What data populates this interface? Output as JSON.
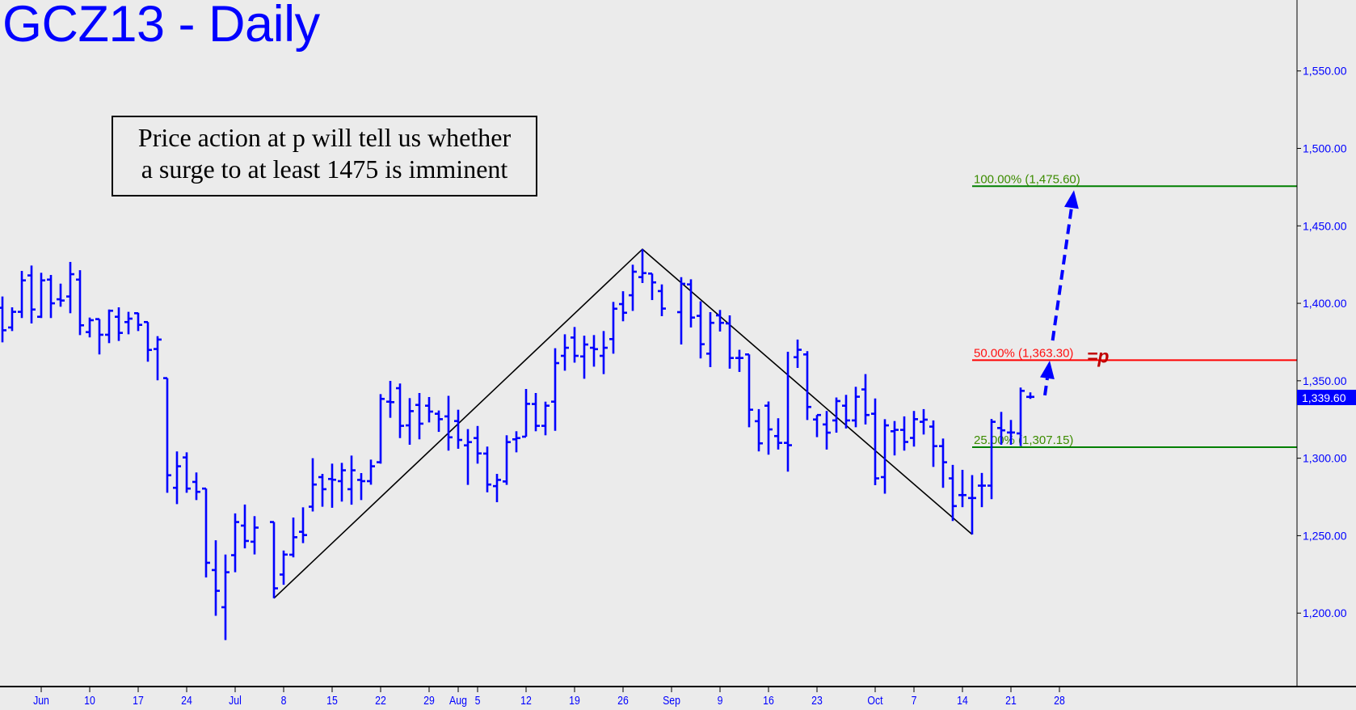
{
  "title": "GCZ13 - Daily",
  "note": {
    "line1": "Price action at p will tell us whether",
    "line2": "a surge to at least 1475 is imminent"
  },
  "colors": {
    "bars": "#0000ff",
    "axis_text": "#0000ff",
    "background": "#ebebeb",
    "fib_green": "#008000",
    "fib_red": "#ff0000",
    "p_marker": "#c00000"
  },
  "chart_data": {
    "type": "ohlc",
    "title": "GCZ13 - Daily",
    "xlabel": "",
    "ylabel": "",
    "ylim": [
      1152.6,
      1595.8
    ],
    "y_ticks": [
      {
        "value": 1200,
        "label": "1,200.00"
      },
      {
        "value": 1250,
        "label": "1,250.00"
      },
      {
        "value": 1300,
        "label": "1,300.00"
      },
      {
        "value": 1350,
        "label": "1,350.00"
      },
      {
        "value": 1400,
        "label": "1,400.00"
      },
      {
        "value": 1450,
        "label": "1,450.00"
      },
      {
        "value": 1500,
        "label": "1,500.00"
      },
      {
        "value": 1550,
        "label": "1,550.00"
      }
    ],
    "x_ticks": [
      {
        "date": "2013-06-03",
        "label": "Jun"
      },
      {
        "date": "2013-06-10",
        "label": "10"
      },
      {
        "date": "2013-06-17",
        "label": "17"
      },
      {
        "date": "2013-06-24",
        "label": "24"
      },
      {
        "date": "2013-07-01",
        "label": "Jul"
      },
      {
        "date": "2013-07-08",
        "label": "8"
      },
      {
        "date": "2013-07-15",
        "label": "15"
      },
      {
        "date": "2013-07-22",
        "label": "22"
      },
      {
        "date": "2013-07-29",
        "label": "29"
      },
      {
        "date": "2013-08-01",
        "label": "Aug"
      },
      {
        "date": "2013-08-05",
        "label": "5"
      },
      {
        "date": "2013-08-12",
        "label": "12"
      },
      {
        "date": "2013-08-19",
        "label": "19"
      },
      {
        "date": "2013-08-26",
        "label": "26"
      },
      {
        "date": "2013-09-02",
        "label": "Sep"
      },
      {
        "date": "2013-09-09",
        "label": "9"
      },
      {
        "date": "2013-09-16",
        "label": "16"
      },
      {
        "date": "2013-09-23",
        "label": "23"
      },
      {
        "date": "2013-10-01",
        "label": "Oct"
      },
      {
        "date": "2013-10-07",
        "label": "7"
      },
      {
        "date": "2013-10-14",
        "label": "14"
      },
      {
        "date": "2013-10-21",
        "label": "21"
      },
      {
        "date": "2013-10-28",
        "label": "28"
      }
    ],
    "last_price": {
      "value": 1339.6,
      "label": "1,339.60"
    },
    "bar_fields": [
      "date",
      "open",
      "high",
      "low",
      "close"
    ],
    "bars": [
      [
        "2013-05-28",
        1397.1,
        1404.4,
        1374.8,
        1382.6
      ],
      [
        "2013-05-29",
        1384.4,
        1397.4,
        1382.1,
        1394.5
      ],
      [
        "2013-05-30",
        1394.5,
        1420.9,
        1390.5,
        1414.8
      ],
      [
        "2013-05-31",
        1418,
        1424.4,
        1387,
        1396
      ],
      [
        "2013-06-03",
        1391.3,
        1419.7,
        1390.5,
        1414.8
      ],
      [
        "2013-06-04",
        1415.3,
        1418.3,
        1390.5,
        1400
      ],
      [
        "2013-06-05",
        1402.6,
        1412.7,
        1397.8,
        1401.8
      ],
      [
        "2013-06-06",
        1404.4,
        1426.7,
        1393.6,
        1418.8
      ],
      [
        "2013-06-07",
        1415.3,
        1421.4,
        1379.5,
        1385.8
      ],
      [
        "2013-06-10",
        1381.4,
        1390.8,
        1378,
        1389.1
      ],
      [
        "2013-06-11",
        1389.8,
        1389.8,
        1367,
        1379.7
      ],
      [
        "2013-06-12",
        1379.7,
        1396,
        1374.3,
        1395.2
      ],
      [
        "2013-06-13",
        1391.3,
        1397.4,
        1375.7,
        1380.9
      ],
      [
        "2013-06-14",
        1387.9,
        1394.5,
        1380,
        1390.1
      ],
      [
        "2013-06-17",
        1393.6,
        1393.9,
        1382.1,
        1386.1
      ],
      [
        "2013-06-18",
        1387.9,
        1387.9,
        1362.3,
        1369.9
      ],
      [
        "2013-06-19",
        1370.5,
        1378.8,
        1350.3,
        1376.6
      ],
      [
        "2013-06-20",
        1351.7,
        1351.7,
        1277.7,
        1289
      ],
      [
        "2013-06-21",
        1280.9,
        1304.4,
        1270.4,
        1294.8
      ],
      [
        "2013-06-24",
        1300.5,
        1303.8,
        1277.7,
        1280.4
      ],
      [
        "2013-06-25",
        1284.7,
        1290.8,
        1273,
        1278.3
      ],
      [
        "2013-06-26",
        1280.4,
        1280.4,
        1223,
        1232.5
      ],
      [
        "2013-06-27",
        1227.8,
        1247,
        1198.3,
        1214.4
      ],
      [
        "2013-06-28",
        1203.8,
        1237.8,
        1182.6,
        1226.4
      ],
      [
        "2013-07-01",
        1237.4,
        1264.4,
        1226.4,
        1258.8
      ],
      [
        "2013-07-02",
        1256.5,
        1270.1,
        1241.8,
        1246.6
      ],
      [
        "2013-07-03",
        1246.1,
        1262.6,
        1237.9,
        1255.2
      ],
      [
        "2013-07-05",
        1258.8,
        1258.8,
        1209.6,
        1216
      ],
      [
        "2013-07-08",
        1224.9,
        1240.4,
        1218.3,
        1237.8
      ],
      [
        "2013-07-09",
        1237.7,
        1261.7,
        1236,
        1249
      ],
      [
        "2013-07-10",
        1252.5,
        1268.3,
        1245.2,
        1250.4
      ],
      [
        "2013-07-11",
        1268.7,
        1300,
        1265.6,
        1283
      ],
      [
        "2013-07-12",
        1287.8,
        1289.9,
        1268.7,
        1280
      ],
      [
        "2013-07-15",
        1286.6,
        1296.5,
        1268,
        1286.1
      ],
      [
        "2013-07-16",
        1285.2,
        1297,
        1272,
        1292.2
      ],
      [
        "2013-07-17",
        1280,
        1301.7,
        1270,
        1292.2
      ],
      [
        "2013-07-18",
        1286,
        1290.4,
        1273,
        1285.2
      ],
      [
        "2013-07-19",
        1285.2,
        1299.1,
        1282.9,
        1294.8
      ],
      [
        "2013-07-22",
        1297.4,
        1341.4,
        1296.5,
        1338.3
      ],
      [
        "2013-07-23",
        1336.5,
        1349.9,
        1326.1,
        1336.2
      ],
      [
        "2013-07-24",
        1345.2,
        1348.2,
        1313,
        1320.9
      ],
      [
        "2013-07-25",
        1321.2,
        1338.8,
        1308.7,
        1330.4
      ],
      [
        "2013-07-26",
        1334.4,
        1342.1,
        1312.2,
        1322.3
      ],
      [
        "2013-07-29",
        1333.9,
        1339.5,
        1323.1,
        1330.1
      ],
      [
        "2013-07-30",
        1328.7,
        1330.8,
        1317,
        1325.2
      ],
      [
        "2013-07-31",
        1327,
        1340.3,
        1304.9,
        1313.5
      ],
      [
        "2013-08-01",
        1324,
        1331.3,
        1306.1,
        1311.8
      ],
      [
        "2013-08-02",
        1308.3,
        1318.8,
        1282.8,
        1310.4
      ],
      [
        "2013-08-05",
        1313,
        1320.8,
        1296.5,
        1303.1
      ],
      [
        "2013-08-06",
        1303,
        1307.5,
        1278,
        1283
      ],
      [
        "2013-08-07",
        1282,
        1289.9,
        1271.6,
        1286
      ],
      [
        "2013-08-08",
        1285,
        1314.8,
        1282.8,
        1310.4
      ],
      [
        "2013-08-09",
        1312.2,
        1317.4,
        1303.8,
        1313
      ],
      [
        "2013-08-12",
        1313.9,
        1344.7,
        1313.9,
        1335.1
      ],
      [
        "2013-08-13",
        1335,
        1342.1,
        1317.4,
        1320.9
      ],
      [
        "2013-08-14",
        1320.9,
        1336.5,
        1314.8,
        1333.9
      ],
      [
        "2013-08-15",
        1336.5,
        1371,
        1317.7,
        1361.4
      ],
      [
        "2013-08-16",
        1366.1,
        1380,
        1356.5,
        1371.3
      ],
      [
        "2013-08-19",
        1377.9,
        1384.7,
        1361.7,
        1366.1
      ],
      [
        "2013-08-20",
        1365.7,
        1379.1,
        1351.3,
        1373.4
      ],
      [
        "2013-08-21",
        1371.3,
        1379.5,
        1359.1,
        1370.4
      ],
      [
        "2013-08-22",
        1366.1,
        1382.1,
        1354.3,
        1371.3
      ],
      [
        "2013-08-23",
        1376.9,
        1400.9,
        1367.5,
        1396.5
      ],
      [
        "2013-08-26",
        1399.5,
        1407.8,
        1388.4,
        1393.9
      ],
      [
        "2013-08-27",
        1405.2,
        1424.9,
        1395.1,
        1420.4
      ],
      [
        "2013-08-28",
        1416.9,
        1434.9,
        1413.1,
        1419.5
      ],
      [
        "2013-08-29",
        1419.2,
        1419.2,
        1402.1,
        1413.5
      ],
      [
        "2013-08-30",
        1407.9,
        1412.2,
        1391.7,
        1396.6
      ],
      [
        "2013-09-03",
        1394.3,
        1416.9,
        1373.4,
        1412.6
      ],
      [
        "2013-09-04",
        1412.2,
        1415.5,
        1384.4,
        1390.8
      ],
      [
        "2013-09-05",
        1391.9,
        1401.3,
        1364.4,
        1373.6
      ],
      [
        "2013-09-06",
        1367.5,
        1394.3,
        1358.8,
        1387.4
      ],
      [
        "2013-09-09",
        1392.2,
        1395.7,
        1381.8,
        1387.4
      ],
      [
        "2013-09-10",
        1387,
        1392.2,
        1357.8,
        1364.7
      ],
      [
        "2013-09-11",
        1364.7,
        1370,
        1355.7,
        1364.7
      ],
      [
        "2013-09-12",
        1367,
        1367,
        1320,
        1331.3
      ],
      [
        "2013-09-13",
        1323.9,
        1331.7,
        1304.4,
        1309.6
      ],
      [
        "2013-09-16",
        1333.9,
        1336.6,
        1302.3,
        1318.6
      ],
      [
        "2013-09-17",
        1314.3,
        1325.8,
        1305.6,
        1309.9
      ],
      [
        "2013-09-18",
        1309.9,
        1368.7,
        1291.3,
        1308.4
      ],
      [
        "2013-09-19",
        1365.2,
        1376.6,
        1358.3,
        1370
      ],
      [
        "2013-09-20",
        1367,
        1369.1,
        1324.7,
        1333.1
      ],
      [
        "2013-09-23",
        1325,
        1327.9,
        1313.6,
        1327.9
      ],
      [
        "2013-09-24",
        1321.8,
        1330.5,
        1305.6,
        1316.5
      ],
      [
        "2013-09-25",
        1324.4,
        1339.2,
        1316.5,
        1336.9
      ],
      [
        "2013-09-26",
        1333.9,
        1340.9,
        1319.2,
        1324.4
      ],
      [
        "2013-09-27",
        1324.4,
        1346.1,
        1320,
        1339.7
      ],
      [
        "2013-09-30",
        1344.4,
        1354.3,
        1321.8,
        1327.9
      ],
      [
        "2013-10-01",
        1328.7,
        1338.6,
        1282.6,
        1287
      ],
      [
        "2013-10-02",
        1287.8,
        1325.2,
        1277.1,
        1321.2
      ],
      [
        "2013-10-03",
        1317.4,
        1324,
        1301.8,
        1318.3
      ],
      [
        "2013-10-04",
        1318.3,
        1327,
        1304.9,
        1310.5
      ],
      [
        "2013-10-07",
        1313.1,
        1330.5,
        1307.5,
        1325.2
      ],
      [
        "2013-10-08",
        1323.5,
        1331.7,
        1315.3,
        1324.9
      ],
      [
        "2013-10-09",
        1320.4,
        1324.4,
        1294.4,
        1307.8
      ],
      [
        "2013-10-10",
        1307.8,
        1312.7,
        1280.9,
        1297.4
      ],
      [
        "2013-10-11",
        1287,
        1295.7,
        1259.5,
        1269.1
      ],
      [
        "2013-10-14",
        1276.2,
        1292.5,
        1268.4,
        1276.2
      ],
      [
        "2013-10-15",
        1274.3,
        1289.1,
        1250.8,
        1274.3
      ],
      [
        "2013-10-16",
        1282.3,
        1290.5,
        1268.4,
        1282.3
      ],
      [
        "2013-10-17",
        1282.3,
        1325.3,
        1273.6,
        1323.5
      ],
      [
        "2013-10-18",
        1319.5,
        1329.9,
        1308.7,
        1318
      ],
      [
        "2013-10-21",
        1316.6,
        1324.7,
        1308.7,
        1316.6
      ],
      [
        "2013-10-22",
        1316,
        1345.6,
        1307.9,
        1343.5
      ],
      [
        "2013-10-23",
        1339.6,
        1342.5,
        1338.3,
        1339.6
      ]
    ],
    "fib_levels": [
      {
        "label": "100.00% (1,475.60)",
        "value": 1475.6,
        "color": "#008000",
        "text_color": "#3c8c00"
      },
      {
        "label": "50.00% (1,363.30)",
        "value": 1363.3,
        "color": "#ff0000",
        "text_color": "#ff1010"
      },
      {
        "label": "25.00% (1,307.15)",
        "value": 1307.15,
        "color": "#008000",
        "text_color": "#3c8c00"
      }
    ],
    "fib_start_date": "2013-10-15",
    "p_marker": {
      "label": "=p",
      "level": 1363.3
    },
    "trendline": [
      {
        "date": "2013-07-05",
        "price": 1209.6
      },
      {
        "date": "2013-08-28",
        "price": 1434.9
      },
      {
        "date": "2013-10-15",
        "price": 1250.8
      }
    ],
    "arrows": [
      {
        "from": {
          "bar_offset": 104.3,
          "price": 1376
        },
        "to": {
          "bar_offset": 106.5,
          "price": 1473
        }
      },
      {
        "from": {
          "bar_offset": 103.5,
          "price": 1340.6
        },
        "to": {
          "bar_offset": 104.0,
          "price": 1363
        }
      }
    ]
  }
}
